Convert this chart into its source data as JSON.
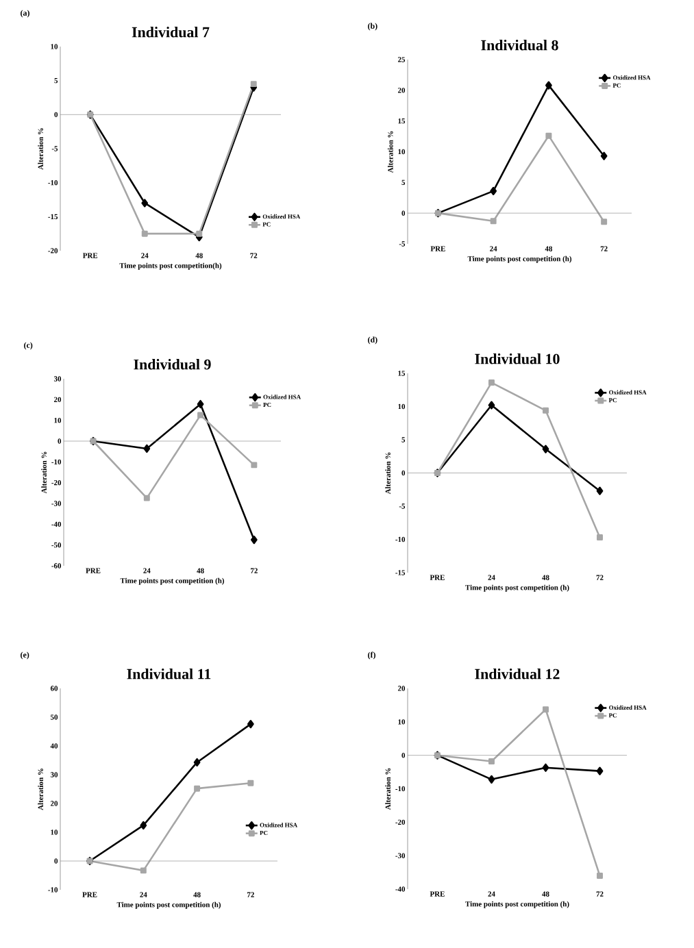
{
  "chart_data": [
    {
      "type": "line",
      "title": "Individual 7",
      "xlabel": "Time points post competition(h)",
      "ylabel": "Alteration %",
      "annotations": [
        "(a)"
      ],
      "categories": [
        "PRE",
        "24",
        "48",
        "72"
      ],
      "ylim": [
        -20,
        10
      ],
      "yticks": [
        -20,
        -15,
        -10,
        -5,
        0,
        5,
        10
      ],
      "legend": "bottom right",
      "series": [
        {
          "name": "Oxidized HSA",
          "color": "#000000",
          "marker": "diamond",
          "values": [
            0,
            -13,
            -18,
            4
          ]
        },
        {
          "name": "PC",
          "color": "#a6a6a6",
          "marker": "square",
          "values": [
            0,
            -17.5,
            -17.5,
            4.5
          ]
        }
      ]
    },
    {
      "type": "line",
      "title": "Individual 8",
      "xlabel": "Time points post competition (h)",
      "ylabel": "Alteration %",
      "annotations": [
        "(b)"
      ],
      "categories": [
        "PRE",
        "24",
        "48",
        "72"
      ],
      "ylim": [
        -5,
        25
      ],
      "yticks": [
        -5,
        0,
        5,
        10,
        15,
        20,
        25
      ],
      "legend": "top right",
      "series": [
        {
          "name": "Oxidized HSA",
          "color": "#000000",
          "marker": "diamond",
          "values": [
            0,
            3.6,
            20.8,
            9.3
          ]
        },
        {
          "name": "PC",
          "color": "#a6a6a6",
          "marker": "square",
          "values": [
            0,
            -1.3,
            12.6,
            -1.4
          ]
        }
      ]
    },
    {
      "type": "line",
      "title": "Individual 9",
      "xlabel": "Time points post competition (h)",
      "ylabel": "Alteration %",
      "annotations": [
        "(c)"
      ],
      "categories": [
        "PRE",
        "24",
        "48",
        "72"
      ],
      "ylim": [
        -60,
        30
      ],
      "yticks": [
        -60,
        -50,
        -40,
        -30,
        -20,
        -10,
        0,
        10,
        20,
        30
      ],
      "legend": "top right",
      "series": [
        {
          "name": "Oxidized HSA",
          "color": "#000000",
          "marker": "diamond",
          "values": [
            0,
            -3.6,
            17.8,
            -47.5
          ]
        },
        {
          "name": "PC",
          "color": "#a6a6a6",
          "marker": "square",
          "values": [
            0,
            -27.4,
            12.5,
            -11.5
          ]
        }
      ]
    },
    {
      "type": "line",
      "title": "Individual 10",
      "xlabel": "Time points post competition (h)",
      "ylabel": "Alteration %",
      "annotations": [
        "(d)"
      ],
      "categories": [
        "PRE",
        "24",
        "48",
        "72"
      ],
      "ylim": [
        -15,
        15
      ],
      "yticks": [
        -15,
        -10,
        -5,
        0,
        5,
        10,
        15
      ],
      "legend": "top right",
      "series": [
        {
          "name": "Oxidized HSA",
          "color": "#000000",
          "marker": "diamond",
          "values": [
            0,
            10.2,
            3.6,
            -2.7
          ]
        },
        {
          "name": "PC",
          "color": "#a6a6a6",
          "marker": "square",
          "values": [
            0,
            13.6,
            9.4,
            -9.7
          ]
        }
      ]
    },
    {
      "type": "line",
      "title": "Individual 11",
      "xlabel": "Time points post competition (h)",
      "ylabel": "Alteration %",
      "annotations": [
        "(e)"
      ],
      "categories": [
        "PRE",
        "24",
        "48",
        "72"
      ],
      "ylim": [
        -10,
        60
      ],
      "yticks": [
        -10,
        0,
        10,
        20,
        30,
        40,
        50,
        60
      ],
      "legend": "right",
      "series": [
        {
          "name": "Oxidized HSA",
          "color": "#000000",
          "marker": "diamond",
          "values": [
            0,
            12.4,
            34.3,
            47.6
          ]
        },
        {
          "name": "PC",
          "color": "#a6a6a6",
          "marker": "square",
          "values": [
            0,
            -3.3,
            25.2,
            27.1
          ]
        }
      ]
    },
    {
      "type": "line",
      "title": "Individual 12",
      "xlabel": "Time points post competition (h)",
      "ylabel": "Alteration %",
      "annotations": [
        "(f)"
      ],
      "categories": [
        "PRE",
        "24",
        "48",
        "72"
      ],
      "ylim": [
        -40,
        20
      ],
      "yticks": [
        -40,
        -30,
        -20,
        -10,
        0,
        10,
        20
      ],
      "legend": "top right",
      "series": [
        {
          "name": "Oxidized HSA",
          "color": "#000000",
          "marker": "diamond",
          "values": [
            0,
            -7.2,
            -3.7,
            -4.7
          ]
        },
        {
          "name": "PC",
          "color": "#a6a6a6",
          "marker": "square",
          "values": [
            0,
            -1.8,
            13.7,
            -36
          ]
        }
      ]
    }
  ]
}
